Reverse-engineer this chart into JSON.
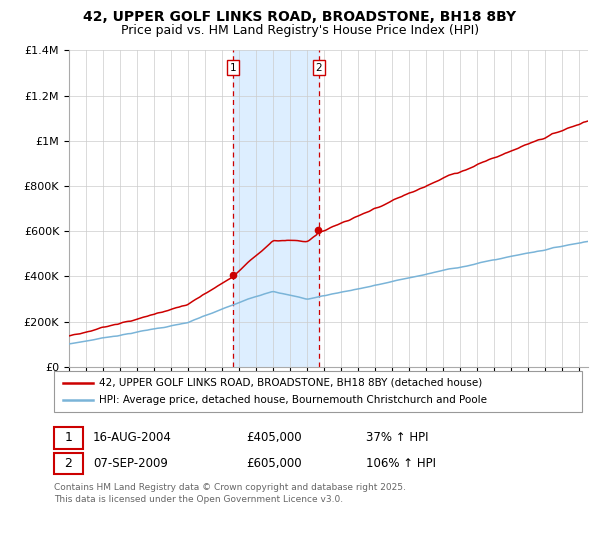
{
  "title": "42, UPPER GOLF LINKS ROAD, BROADSTONE, BH18 8BY",
  "subtitle": "Price paid vs. HM Land Registry's House Price Index (HPI)",
  "legend_line1": "42, UPPER GOLF LINKS ROAD, BROADSTONE, BH18 8BY (detached house)",
  "legend_line2": "HPI: Average price, detached house, Bournemouth Christchurch and Poole",
  "footer": "Contains HM Land Registry data © Crown copyright and database right 2025.\nThis data is licensed under the Open Government Licence v3.0.",
  "transaction1_date": "16-AUG-2004",
  "transaction1_price": "£405,000",
  "transaction1_hpi": "37% ↑ HPI",
  "transaction2_date": "07-SEP-2009",
  "transaction2_price": "£605,000",
  "transaction2_hpi": "106% ↑ HPI",
  "ylim": [
    0,
    1400000
  ],
  "yticks": [
    0,
    200000,
    400000,
    600000,
    800000,
    1000000,
    1200000,
    1400000
  ],
  "ytick_labels": [
    "£0",
    "£200K",
    "£400K",
    "£600K",
    "£800K",
    "£1M",
    "£1.2M",
    "£1.4M"
  ],
  "xlim_start": 1995,
  "xlim_end": 2025.5,
  "sale1_year": 2004.62,
  "sale1_price": 405000,
  "sale2_year": 2009.68,
  "sale2_price": 605000,
  "hpi_color": "#7ab4d8",
  "property_color": "#cc0000",
  "vline_color": "#cc0000",
  "shade_color": "#ddeeff",
  "background_color": "#ffffff",
  "grid_color": "#cccccc",
  "title_fontsize": 10,
  "subtitle_fontsize": 9
}
